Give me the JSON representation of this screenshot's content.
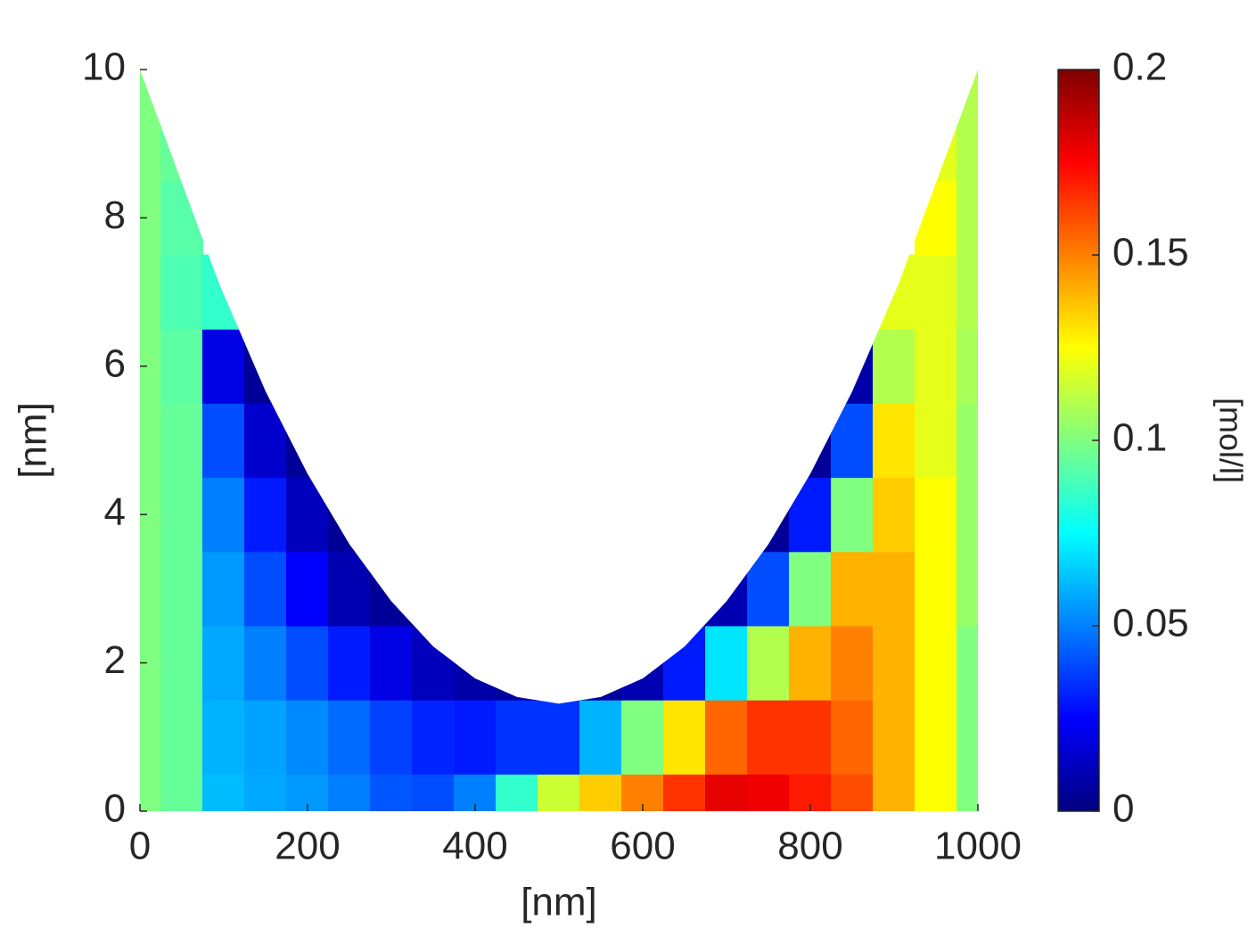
{
  "chart_data": {
    "type": "contourf",
    "xlabel": "[nm]",
    "ylabel": "[nm]",
    "colorbar_label": "[mol/l]",
    "colormap": "jet",
    "xlim": [
      0,
      1000
    ],
    "xticks": [
      0,
      200,
      400,
      600,
      800,
      1000
    ],
    "ylim": [
      0,
      10
    ],
    "yticks": [
      0,
      2,
      4,
      6,
      8,
      10
    ],
    "clim": [
      0,
      0.2
    ],
    "cticks": [
      0,
      0.05,
      0.1,
      0.15,
      0.2
    ],
    "boundary": {
      "x": [
        0,
        95,
        150,
        200,
        250,
        300,
        350,
        400,
        450,
        500,
        550,
        600,
        650,
        700,
        750,
        800,
        850,
        905,
        1000
      ],
      "y": [
        10,
        7.1,
        5.66,
        4.55,
        3.6,
        2.83,
        2.22,
        1.79,
        1.54,
        1.45,
        1.54,
        1.79,
        2.22,
        2.83,
        3.6,
        4.55,
        5.66,
        7.1,
        10
      ]
    },
    "x_grid": [
      0,
      50,
      100,
      150,
      200,
      250,
      300,
      350,
      400,
      450,
      500,
      550,
      600,
      650,
      700,
      750,
      800,
      850,
      900,
      950,
      1000
    ],
    "y_grid": [
      0,
      1,
      2,
      3,
      4,
      5,
      6,
      7,
      8,
      9,
      10
    ],
    "z": [
      [
        0.1,
        0.095,
        0.062,
        0.058,
        0.055,
        0.05,
        0.042,
        0.04,
        0.05,
        0.085,
        0.115,
        0.135,
        0.15,
        0.165,
        0.18,
        0.178,
        0.17,
        0.16,
        0.14,
        0.125,
        0.1
      ],
      [
        0.1,
        0.095,
        0.06,
        0.057,
        0.052,
        0.046,
        0.038,
        0.032,
        0.03,
        0.035,
        0.035,
        0.06,
        0.1,
        0.13,
        0.155,
        0.165,
        0.165,
        0.155,
        0.14,
        0.125,
        0.1
      ],
      [
        0.1,
        0.095,
        0.058,
        0.05,
        0.04,
        0.03,
        0.02,
        0.012,
        0.008,
        0.006,
        0.005,
        0.006,
        0.01,
        0.03,
        0.07,
        0.11,
        0.14,
        0.15,
        0.14,
        0.125,
        0.1
      ],
      [
        0.1,
        0.095,
        0.055,
        0.04,
        0.025,
        0.01,
        0.005,
        0.004,
        null,
        null,
        null,
        null,
        null,
        0.004,
        0.01,
        0.04,
        0.1,
        0.14,
        0.14,
        0.125,
        0.105
      ],
      [
        0.1,
        0.095,
        0.05,
        0.03,
        0.012,
        0.005,
        null,
        null,
        null,
        null,
        null,
        null,
        null,
        null,
        null,
        0.005,
        0.03,
        0.1,
        0.135,
        0.125,
        0.105
      ],
      [
        0.1,
        0.095,
        0.04,
        0.015,
        0.005,
        null,
        null,
        null,
        null,
        null,
        null,
        null,
        null,
        null,
        null,
        null,
        0.005,
        0.04,
        0.13,
        0.12,
        0.105
      ],
      [
        0.1,
        0.093,
        0.02,
        0.005,
        null,
        null,
        null,
        null,
        null,
        null,
        null,
        null,
        null,
        null,
        null,
        null,
        null,
        0.008,
        0.11,
        0.12,
        0.108
      ],
      [
        0.1,
        0.09,
        0.085,
        null,
        null,
        null,
        null,
        null,
        null,
        null,
        null,
        null,
        null,
        null,
        null,
        null,
        null,
        null,
        0.12,
        0.12,
        0.11
      ],
      [
        0.1,
        0.092,
        null,
        null,
        null,
        null,
        null,
        null,
        null,
        null,
        null,
        null,
        null,
        null,
        null,
        null,
        null,
        null,
        null,
        0.125,
        0.11
      ],
      [
        0.1,
        0.095,
        null,
        null,
        null,
        null,
        null,
        null,
        null,
        null,
        null,
        null,
        null,
        null,
        null,
        null,
        null,
        null,
        null,
        0.12,
        0.11
      ],
      [
        0.1,
        0.095,
        null,
        null,
        null,
        null,
        null,
        null,
        null,
        null,
        null,
        null,
        null,
        null,
        null,
        null,
        null,
        null,
        null,
        0.12,
        0.11
      ]
    ]
  }
}
